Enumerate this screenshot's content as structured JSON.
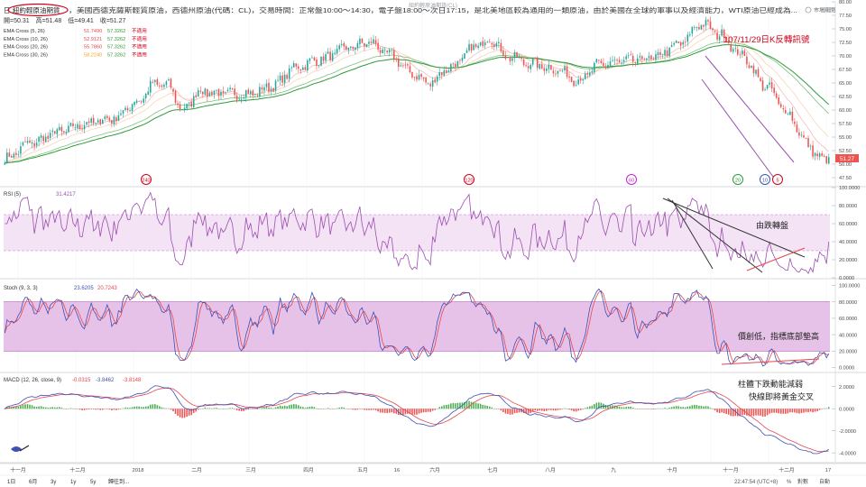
{
  "header": {
    "symbol_box": "紐約輕原油期貨",
    "prefix": "日",
    "description": "，美國西德克薩斯輕質原油，西德州原油(代碼：CL)，交易時間：正常盤10:00～14:30，電子盤18:00～次日17:15，是北美地區較為通用的一類原油，由於美國在全球的軍事以及經濟能力，WTI原油已經成為...",
    "ohlc": "開=50.31　高=51.48　低=49.41　收=51.27",
    "mkt_status": "市場關閉"
  },
  "ema_legend": [
    {
      "label": "EMA Cross (5, 26)",
      "v1": "51.7490",
      "v2": "57.3262",
      "tag": "不適用",
      "c1": "#e5484d",
      "c2": "#2e9a3a"
    },
    {
      "label": "EMA Cross (10, 26)",
      "v1": "52.9121",
      "v2": "57.3262",
      "tag": "不適用",
      "c1": "#e5484d",
      "c2": "#2e9a3a"
    },
    {
      "label": "EMA Cross (20, 26)",
      "v1": "55.7860",
      "v2": "57.3262",
      "tag": "不適用",
      "c1": "#e5484d",
      "c2": "#2e9a3a"
    },
    {
      "label": "EMA Cross (30, 26)",
      "v1": "58.2240",
      "v2": "57.3262",
      "tag": "不適用",
      "c1": "#f5a623",
      "c2": "#2e9a3a"
    }
  ],
  "watermark": "紐約輕原油期貨(CL)",
  "colors": {
    "up": "#26a69a",
    "down": "#ef5350",
    "bg": "#ffffff",
    "grid": "#eceff2",
    "axis_text": "#4a4a4a",
    "band": "#f3e3f5",
    "stoch_band": "#e7c2e8",
    "rsi_line": "#9c4fb0",
    "k_line": "#3f51b5",
    "d_line": "#e5484d",
    "macd_line": "#3f51b5",
    "signal_line": "#e5484d",
    "annot": "#d0021b"
  },
  "rsi_legend": {
    "label": "RSI (5)",
    "value": "31.4217"
  },
  "stoch_legend": {
    "label": "Stoch (9, 3, 3)",
    "k": "23.6205",
    "d": "20.7243"
  },
  "macd_legend": {
    "label": "MACD (12, 26, close, 9)",
    "hist": "-0.0315",
    "macd": "-3.8462",
    "signal": "-3.8148"
  },
  "annotations": {
    "price": "107/11/29日K反轉訊號",
    "rsi": "由跌轉盤",
    "stoch": "價創低，指標底部墊高",
    "macd_1": "柱體下跌動能減弱",
    "macd_2": "快線即將黃金交叉"
  },
  "cycle_markers": [
    "240",
    "120",
    "60",
    "20",
    "10",
    "5"
  ],
  "price_tag": "51.27",
  "bottom_bar": {
    "ranges": [
      "1日",
      "6月",
      "3y",
      "1y",
      "5y",
      "歸往到..."
    ],
    "clock": "22:47:54 (UTC+8)",
    "pct": "%",
    "log": "對數",
    "auto": "自動"
  },
  "chart_data": [
    {
      "type": "candlestick",
      "title": "",
      "ylim": [
        46,
        80
      ],
      "yticks": [
        "47.50",
        "50.00",
        "52.50",
        "55.00",
        "57.50",
        "60.00",
        "62.50",
        "65.00",
        "67.50",
        "70.00",
        "72.50",
        "75.00",
        "77.50",
        "80.00"
      ],
      "xlabels": [
        "十一月",
        "十二月",
        "2018",
        "二月",
        "三月",
        "四月",
        "五月",
        "16",
        "六月",
        "七月",
        "八月",
        "九",
        "十月",
        "十一月",
        "十二月",
        "17"
      ],
      "anchors": [
        [
          0,
          51.0
        ],
        [
          12,
          54.0
        ],
        [
          24,
          56.0
        ],
        [
          36,
          57.5
        ],
        [
          48,
          58.5
        ],
        [
          58,
          61.5
        ],
        [
          66,
          64.8
        ],
        [
          72,
          64.5
        ],
        [
          78,
          60.0
        ],
        [
          86,
          63.5
        ],
        [
          96,
          63.0
        ],
        [
          108,
          63.0
        ],
        [
          118,
          64.5
        ],
        [
          128,
          68.0
        ],
        [
          140,
          69.5
        ],
        [
          150,
          71.5
        ],
        [
          160,
          72.5
        ],
        [
          170,
          70.0
        ],
        [
          178,
          67.0
        ],
        [
          186,
          65.0
        ],
        [
          196,
          68.0
        ],
        [
          208,
          72.0
        ],
        [
          214,
          73.2
        ],
        [
          220,
          70.0
        ],
        [
          232,
          68.5
        ],
        [
          242,
          67.5
        ],
        [
          252,
          65.5
        ],
        [
          262,
          68.5
        ],
        [
          272,
          69.0
        ],
        [
          284,
          69.5
        ],
        [
          296,
          72.0
        ],
        [
          306,
          76.0
        ],
        [
          314,
          74.0
        ],
        [
          324,
          70.0
        ],
        [
          334,
          64.5
        ],
        [
          344,
          59.5
        ],
        [
          352,
          54.0
        ],
        [
          358,
          51.0
        ],
        [
          362,
          51.3
        ]
      ],
      "ema_periods": [
        5,
        10,
        20,
        26
      ]
    },
    {
      "type": "line",
      "name": "RSI (5)",
      "ylim": [
        0,
        100
      ],
      "yticks": [
        "0.0000",
        "20.0000",
        "40.0000",
        "60.0000",
        "80.0000",
        "100.0000"
      ],
      "band": [
        30,
        70
      ]
    },
    {
      "type": "line",
      "name": "Stoch (9, 3, 3)",
      "ylim": [
        -5,
        105
      ],
      "yticks": [
        "0.0000",
        "20.0000",
        "40.0000",
        "60.0000",
        "80.0000",
        "100.0000"
      ],
      "band": [
        20,
        80
      ]
    },
    {
      "type": "line",
      "name": "MACD (12, 26, close, 9)",
      "ylim": [
        -4.8,
        3.2
      ],
      "yticks": [
        "-4.0000",
        "-2.0000",
        "0.0000",
        "2.0000"
      ]
    }
  ]
}
